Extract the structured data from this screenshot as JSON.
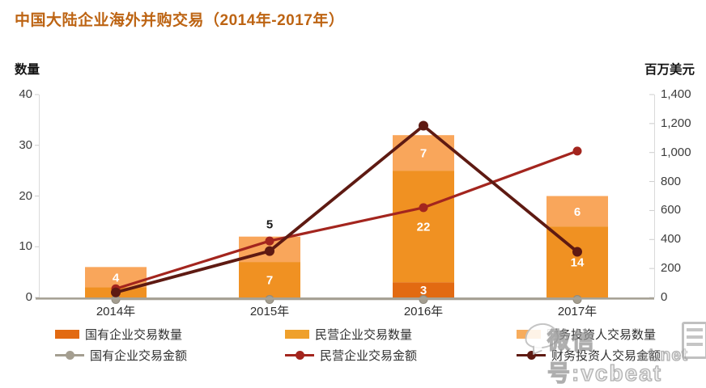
{
  "page": {
    "title": "中国大陆企业海外并购交易（2014年-2017年）",
    "left_axis_title": "数量",
    "right_axis_title": "百万美元"
  },
  "chart_data": {
    "type": "bar+line combo",
    "title": "中国大陆企业海外并购交易（2014年-2017年）",
    "categories": [
      "2014年",
      "2015年",
      "2016年",
      "2017年"
    ],
    "left_axis": {
      "label": "数量",
      "lim": [
        0,
        40
      ],
      "ticks": [
        0,
        10,
        20,
        30,
        40
      ]
    },
    "right_axis": {
      "label": "百万美元",
      "lim": [
        0,
        1400
      ],
      "ticks": [
        0,
        200,
        400,
        600,
        800,
        1000,
        1200,
        1400
      ]
    },
    "grid": false,
    "legend_position": "bottom",
    "bar_series": [
      {
        "name": "国有企业交易数量",
        "axis": "left",
        "color": "#e26a12",
        "values": [
          0,
          0,
          3,
          0
        ],
        "labels_outside": [
          false,
          false,
          false,
          false
        ]
      },
      {
        "name": "民营企业交易数量",
        "axis": "left",
        "color": "#f09122",
        "values": [
          2,
          7,
          22,
          14
        ],
        "labels_outside": [
          false,
          false,
          false,
          false
        ]
      },
      {
        "name": "财务投资人交易数量",
        "axis": "left",
        "color": "#f9a65b",
        "values": [
          4,
          5,
          7,
          6
        ],
        "labels_outside": [
          false,
          true,
          false,
          false
        ]
      }
    ],
    "line_series": [
      {
        "name": "国有企业交易金额",
        "axis": "right",
        "color": "#a49e90",
        "width": 2.5,
        "marker_r": 5,
        "values": [
          0,
          0,
          0,
          0
        ]
      },
      {
        "name": "民营企业交易金额",
        "axis": "right",
        "color": "#a3251e",
        "width": 3.2,
        "marker_r": 5.5,
        "values": [
          60,
          390,
          620,
          1010
        ]
      },
      {
        "name": "财务投资人交易金额",
        "axis": "right",
        "color": "#5e1a12",
        "width": 3.8,
        "marker_r": 6,
        "values": [
          35,
          320,
          1185,
          315
        ]
      }
    ]
  },
  "legend": {
    "items": [
      {
        "label": "国有企业交易数量",
        "type": "bar",
        "color": "#e26a12"
      },
      {
        "label": "民营企业交易数量",
        "type": "bar",
        "color": "#efa02b"
      },
      {
        "label": "财务投资人交易数量",
        "type": "bar",
        "color": "#f7ac5c"
      },
      {
        "label": "国有企业交易金额",
        "type": "line",
        "color": "#a49e90"
      },
      {
        "label": "民营企业交易金额",
        "type": "line",
        "color": "#a3251e"
      },
      {
        "label": "财务投资人交易金额",
        "type": "line",
        "color": "#5e1a12"
      }
    ]
  },
  "watermark": {
    "wechat_text": "微信号:vcbeat",
    "site_text": "at.net"
  },
  "colors": {
    "title": "#bd6413",
    "x_axis_line": "#a7a296",
    "side_axis_line": "#dadada",
    "bar_label_inside": "#ffffff",
    "bar_label_outside": "#1a1a1a"
  }
}
